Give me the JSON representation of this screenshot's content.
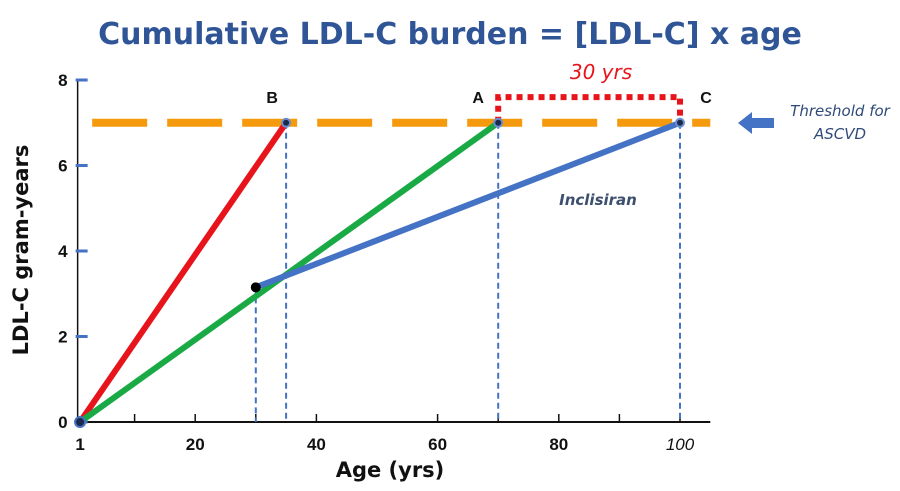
{
  "chart_data": {
    "type": "line",
    "title": "Cumulative LDL-C burden = [LDL-C] x age",
    "xlabel": "Age (yrs)",
    "ylabel": "LDL-C gram-years",
    "xlim": [
      1,
      105
    ],
    "ylim": [
      0,
      8
    ],
    "x_ticks": [
      "1",
      "20",
      "40",
      "60",
      "80",
      "100"
    ],
    "x_tick_values": [
      1,
      20,
      40,
      60,
      80,
      100
    ],
    "y_ticks": [
      "0",
      "2",
      "4",
      "6",
      "8"
    ],
    "y_tick_values": [
      0,
      2,
      4,
      6,
      8
    ],
    "series": [
      {
        "name": "red",
        "color": "#e8141b",
        "points": [
          [
            1,
            0
          ],
          [
            35,
            7
          ]
        ]
      },
      {
        "name": "green",
        "color": "#1aaa45",
        "points": [
          [
            1,
            0
          ],
          [
            70,
            7
          ]
        ]
      },
      {
        "name": "Inclisiran",
        "color": "#4472c4",
        "points": [
          [
            30,
            3.15
          ],
          [
            100,
            7
          ]
        ]
      }
    ],
    "threshold": {
      "value": 7,
      "color": "#f59a0c",
      "label_line1": "Threshold for",
      "label_line2": "ASCVD"
    },
    "points": [
      {
        "label": "B",
        "x": 35,
        "y": 7
      },
      {
        "label": "A",
        "x": 70,
        "y": 7
      },
      {
        "label": "C",
        "x": 100,
        "y": 7
      }
    ],
    "intersection": {
      "x": 30,
      "y": 3.15
    },
    "drop_lines_x": [
      30,
      35,
      70,
      100
    ],
    "annotations": {
      "series_label": "Inclisiran",
      "gap_label": "30 yrs",
      "gap_from": 70,
      "gap_to": 100
    }
  }
}
